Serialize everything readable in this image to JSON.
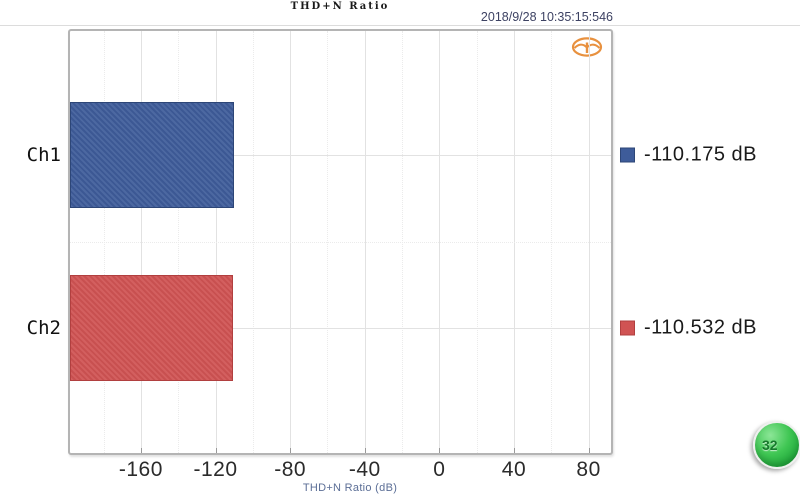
{
  "window": {
    "title": "THD+N Ratio",
    "timestamp": "2018/9/28 10:35:15:546"
  },
  "chart_data": {
    "type": "bar",
    "orientation": "horizontal",
    "title": "THD+N Ratio",
    "xlabel": "THD+N Ratio (dB)",
    "categories": [
      "Ch1",
      "Ch2"
    ],
    "series": [
      {
        "name": "Ch1",
        "value": -110.175,
        "label": "-110.175 dB",
        "color": "#3e5c9a",
        "border_color": "#2d4677"
      },
      {
        "name": "Ch2",
        "value": -110.532,
        "label": "-110.532 dB",
        "color": "#d05353",
        "border_color": "#b13f3f"
      }
    ],
    "xlim": [
      -198,
      92
    ],
    "xticks": [
      -160,
      -120,
      -80,
      -40,
      0,
      40,
      80
    ],
    "minor_tick_step": 20,
    "bars_anchored_at_axis_min": true,
    "grid": true,
    "legend_position": "right"
  },
  "legend": {
    "items": [
      {
        "label": "-110.175 dB",
        "color": "#3e5c9a"
      },
      {
        "label": "-110.532 dB",
        "color": "#d05353"
      }
    ]
  },
  "badge": {
    "label": "32"
  },
  "icons": {
    "brand_emblem": "orange-oval-wings-emblem",
    "brand_color": "#e8913f"
  }
}
